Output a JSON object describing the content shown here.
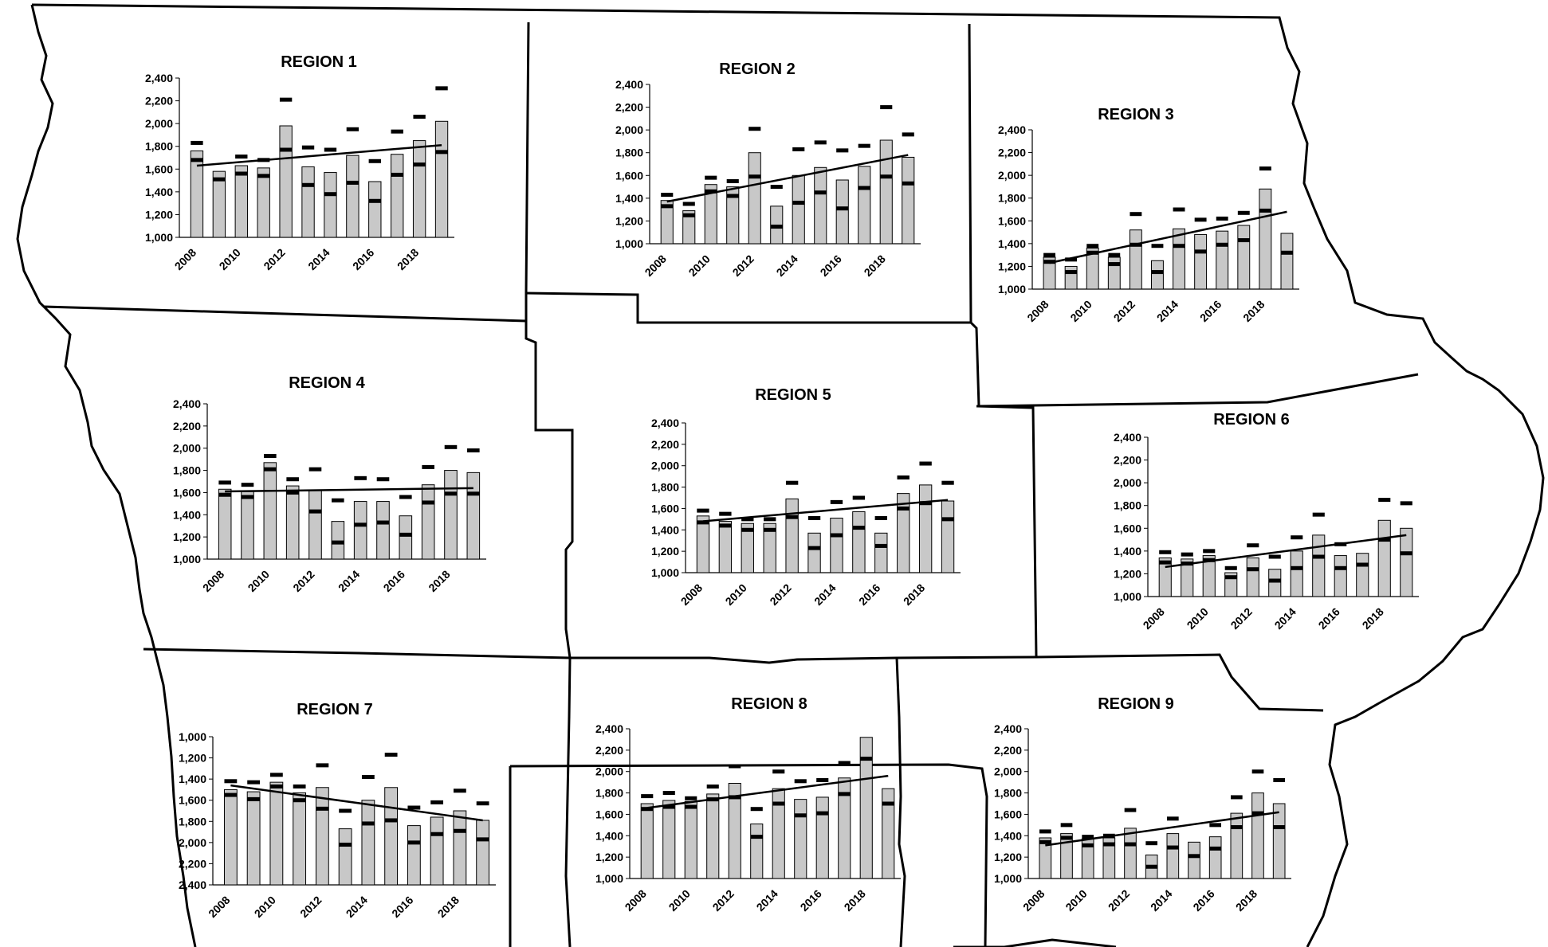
{
  "chart_data": [
    {
      "type": "bar",
      "title": "REGION 1",
      "ylim": [
        1000,
        2400
      ],
      "yticks": [
        "1,000",
        "1,200",
        "1,400",
        "1,600",
        "1,800",
        "2,000",
        "2,200",
        "2,400"
      ],
      "xtick_labels": [
        "2008",
        "2010",
        "2012",
        "2014",
        "2016",
        "2018"
      ],
      "categories": [
        "2008",
        "2009",
        "2010",
        "2011",
        "2012",
        "2013",
        "2014",
        "2015",
        "2016",
        "2017",
        "2018",
        "2019"
      ],
      "values": [
        1760,
        1580,
        1630,
        1610,
        1980,
        1620,
        1570,
        1720,
        1490,
        1730,
        1850,
        2020
      ],
      "upper": [
        1830,
        null,
        1710,
        1680,
        2210,
        1790,
        1770,
        1950,
        1670,
        1930,
        2060,
        2310
      ],
      "lower": [
        1680,
        1510,
        1560,
        1540,
        1770,
        1460,
        1380,
        1480,
        1320,
        1550,
        1640,
        1750
      ],
      "trend": [
        1630,
        1810
      ]
    },
    {
      "type": "bar",
      "title": "REGION 2",
      "ylim": [
        1000,
        2400
      ],
      "yticks": [
        "1,000",
        "1,200",
        "1,400",
        "1,600",
        "1,800",
        "2,000",
        "2,200",
        "2,400"
      ],
      "xtick_labels": [
        "2008",
        "2010",
        "2012",
        "2014",
        "2016",
        "2018"
      ],
      "categories": [
        "2008",
        "2009",
        "2010",
        "2011",
        "2012",
        "2013",
        "2014",
        "2015",
        "2016",
        "2017",
        "2018",
        "2019"
      ],
      "values": [
        1380,
        1290,
        1520,
        1500,
        1800,
        1330,
        1600,
        1670,
        1560,
        1680,
        1910,
        1760
      ],
      "upper": [
        1430,
        1350,
        1580,
        1550,
        2010,
        1500,
        1830,
        1890,
        1820,
        1860,
        2200,
        1960
      ],
      "lower": [
        1330,
        1250,
        1460,
        1420,
        1590,
        1150,
        1360,
        1450,
        1310,
        1490,
        1590,
        1530
      ],
      "trend": [
        1370,
        1780
      ]
    },
    {
      "type": "bar",
      "title": "REGION 3",
      "ylim": [
        1000,
        2400
      ],
      "yticks": [
        "1,000",
        "1,200",
        "1,400",
        "1,600",
        "1,800",
        "2,000",
        "2,200",
        "2,400"
      ],
      "xtick_labels": [
        "2008",
        "2010",
        "2012",
        "2014",
        "2016",
        "2018"
      ],
      "categories": [
        "2008",
        "2009",
        "2010",
        "2011",
        "2012",
        "2013",
        "2014",
        "2015",
        "2016",
        "2017",
        "2018",
        "2019"
      ],
      "values": [
        1280,
        1200,
        1360,
        1280,
        1520,
        1250,
        1530,
        1480,
        1510,
        1560,
        1880,
        1490
      ],
      "upper": [
        1300,
        1260,
        1380,
        1300,
        1660,
        1380,
        1700,
        1610,
        1620,
        1670,
        2060,
        null
      ],
      "lower": [
        1240,
        1150,
        1320,
        1220,
        1390,
        1150,
        1380,
        1330,
        1390,
        1430,
        1690,
        1320
      ],
      "trend": [
        1230,
        1680
      ]
    },
    {
      "type": "bar",
      "title": "REGION 4",
      "ylim": [
        1000,
        2400
      ],
      "yticks": [
        "1,000",
        "1,200",
        "1,400",
        "1,600",
        "1,800",
        "2,000",
        "2,200",
        "2,400"
      ],
      "xtick_labels": [
        "2008",
        "2010",
        "2012",
        "2014",
        "2016",
        "2018"
      ],
      "categories": [
        "2008",
        "2009",
        "2010",
        "2011",
        "2012",
        "2013",
        "2014",
        "2015",
        "2016",
        "2017",
        "2018",
        "2019"
      ],
      "values": [
        1630,
        1610,
        1870,
        1660,
        1620,
        1340,
        1520,
        1520,
        1390,
        1670,
        1800,
        1780
      ],
      "upper": [
        1690,
        1670,
        1930,
        1720,
        1810,
        1530,
        1730,
        1720,
        1560,
        1830,
        2010,
        1980
      ],
      "lower": [
        1580,
        1560,
        1810,
        1600,
        1430,
        1150,
        1310,
        1330,
        1220,
        1510,
        1590,
        1590
      ],
      "trend": [
        1610,
        1640
      ]
    },
    {
      "type": "bar",
      "title": "REGION 5",
      "ylim": [
        1000,
        2400
      ],
      "yticks": [
        "1,000",
        "1,200",
        "1,400",
        "1,600",
        "1,800",
        "2,000",
        "2,200",
        "2,400"
      ],
      "xtick_labels": [
        "2008",
        "2010",
        "2012",
        "2014",
        "2016",
        "2018"
      ],
      "categories": [
        "2008",
        "2009",
        "2010",
        "2011",
        "2012",
        "2013",
        "2014",
        "2015",
        "2016",
        "2017",
        "2018",
        "2019"
      ],
      "values": [
        1530,
        1480,
        1460,
        1460,
        1690,
        1370,
        1510,
        1570,
        1370,
        1740,
        1820,
        1670
      ],
      "upper": [
        1580,
        1550,
        1500,
        1500,
        1840,
        1510,
        1660,
        1700,
        1510,
        1890,
        2020,
        1840
      ],
      "lower": [
        1470,
        1440,
        1400,
        1400,
        1520,
        1230,
        1350,
        1420,
        1250,
        1600,
        1650,
        1500
      ],
      "trend": [
        1480,
        1680
      ]
    },
    {
      "type": "bar",
      "title": "REGION 6",
      "ylim": [
        1000,
        2400
      ],
      "yticks": [
        "1,000",
        "1,200",
        "1,400",
        "1,600",
        "1,800",
        "2,000",
        "2,200",
        "2,400"
      ],
      "xtick_labels": [
        "2008",
        "2010",
        "2012",
        "2014",
        "2016",
        "2018"
      ],
      "categories": [
        "2008",
        "2009",
        "2010",
        "2011",
        "2012",
        "2013",
        "2014",
        "2015",
        "2016",
        "2017",
        "2018",
        "2019"
      ],
      "values": [
        1340,
        1330,
        1360,
        1210,
        1340,
        1240,
        1400,
        1540,
        1360,
        1380,
        1670,
        1600
      ],
      "upper": [
        1390,
        1370,
        1400,
        1250,
        1450,
        1350,
        1520,
        1720,
        1460,
        null,
        1850,
        1820
      ],
      "lower": [
        1300,
        1290,
        1320,
        1170,
        1240,
        1140,
        1250,
        1350,
        1250,
        1280,
        1500,
        1380
      ],
      "trend": [
        1260,
        1540
      ]
    },
    {
      "type": "bar",
      "title": "REGION 7",
      "ylim": [
        1000,
        2400
      ],
      "yticks": [
        "2,400",
        "2,200",
        "2,000",
        "1,800",
        "1,600",
        "1,400",
        "1,200",
        "1,000"
      ],
      "xtick_labels": [
        "2008",
        "2010",
        "2012",
        "2014",
        "2016",
        "2018"
      ],
      "categories": [
        "2008",
        "2009",
        "2010",
        "2011",
        "2012",
        "2013",
        "2014",
        "2015",
        "2016",
        "2017",
        "2018",
        "2019"
      ],
      "values": [
        1900,
        1880,
        1970,
        1870,
        1920,
        1530,
        1800,
        1920,
        1560,
        1640,
        1700,
        1610
      ],
      "upper": [
        1980,
        1970,
        2040,
        1930,
        2130,
        1700,
        2020,
        2230,
        1730,
        1780,
        1890,
        1770
      ],
      "lower": [
        1850,
        1810,
        1930,
        1800,
        1720,
        1380,
        1580,
        1610,
        1400,
        1480,
        1510,
        1430
      ],
      "trend": [
        1940,
        1610
      ]
    },
    {
      "type": "bar",
      "title": "REGION 8",
      "ylim": [
        1000,
        2400
      ],
      "yticks": [
        "1,000",
        "1,200",
        "1,400",
        "1,600",
        "1,800",
        "2,000",
        "2,200",
        "2,400"
      ],
      "xtick_labels": [
        "2008",
        "2010",
        "2012",
        "2014",
        "2016",
        "2018"
      ],
      "categories": [
        "2008",
        "2009",
        "2010",
        "2011",
        "2012",
        "2013",
        "2014",
        "2015",
        "2016",
        "2017",
        "2018",
        "2019"
      ],
      "values": [
        1700,
        1730,
        1720,
        1790,
        1890,
        1510,
        1840,
        1740,
        1760,
        1940,
        2320,
        1840
      ],
      "upper": [
        1770,
        1800,
        1750,
        1860,
        2050,
        1650,
        2000,
        1910,
        1920,
        2080,
        null,
        null
      ],
      "lower": [
        1650,
        1670,
        1670,
        1740,
        1760,
        1390,
        1700,
        1590,
        1610,
        1790,
        2120,
        1700
      ],
      "trend": [
        1660,
        1960
      ]
    },
    {
      "type": "bar",
      "title": "REGION 9",
      "ylim": [
        1000,
        2400
      ],
      "yticks": [
        "1,000",
        "1,200",
        "1,400",
        "1,600",
        "1,800",
        "2,000",
        "2,200",
        "2,400"
      ],
      "xtick_labels": [
        "2008",
        "2010",
        "2012",
        "2014",
        "2016",
        "2018"
      ],
      "categories": [
        "2008",
        "2009",
        "2010",
        "2011",
        "2012",
        "2013",
        "2014",
        "2015",
        "2016",
        "2017",
        "2018",
        "2019"
      ],
      "values": [
        1380,
        1420,
        1370,
        1380,
        1470,
        1220,
        1420,
        1340,
        1390,
        1610,
        1800,
        1700
      ],
      "upper": [
        1440,
        1500,
        1390,
        1400,
        1640,
        1330,
        1560,
        null,
        1500,
        1760,
        2000,
        1920
      ],
      "lower": [
        1340,
        1380,
        1310,
        1320,
        1320,
        1110,
        1290,
        1210,
        1280,
        1480,
        1610,
        1480
      ],
      "trend": [
        1310,
        1620
      ]
    }
  ]
}
